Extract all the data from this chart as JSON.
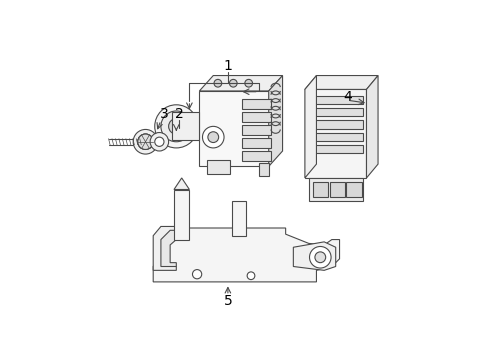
{
  "background_color": "#ffffff",
  "line_color": "#4a4a4a",
  "label_color": "#000000",
  "figsize": [
    4.89,
    3.6
  ],
  "dpi": 100,
  "label_fontsize": 10
}
